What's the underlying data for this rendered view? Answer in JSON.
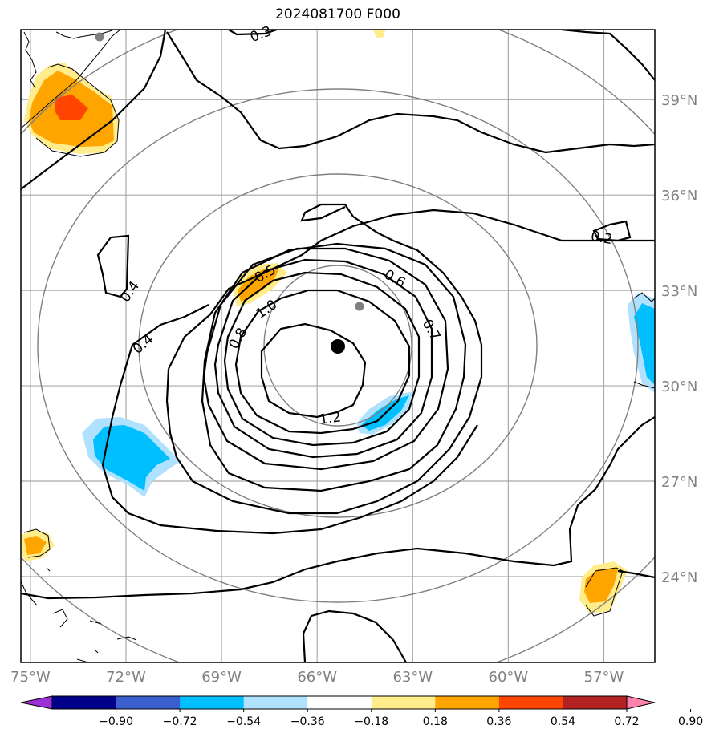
{
  "title": "2024081700 F000",
  "map": {
    "lon_range": [
      -75.3,
      -55.4
    ],
    "lat_range": [
      21.3,
      41.2
    ],
    "lon_ticks": [
      {
        "value": -75,
        "label": "75°W"
      },
      {
        "value": -72,
        "label": "72°W"
      },
      {
        "value": -69,
        "label": "69°W"
      },
      {
        "value": -66,
        "label": "66°W"
      },
      {
        "value": -63,
        "label": "63°W"
      },
      {
        "value": -60,
        "label": "60°W"
      },
      {
        "value": -57,
        "label": "57°W"
      }
    ],
    "lat_ticks": [
      {
        "value": 39,
        "label": "39°N"
      },
      {
        "value": 36,
        "label": "36°N"
      },
      {
        "value": 33,
        "label": "33°N"
      },
      {
        "value": 30,
        "label": "30°N"
      },
      {
        "value": 27,
        "label": "27°N"
      },
      {
        "value": 24,
        "label": "24°N"
      }
    ],
    "grid_color": "#aaaaaa",
    "storm_center": {
      "lon": -65.3,
      "lat": 31.0
    }
  },
  "contour_labels": [
    "0.3",
    "0.5",
    "0.6",
    "1.0",
    "0.8",
    "0.7",
    "1.2",
    "0.4",
    "0.4",
    "0.2"
  ],
  "colorbar": {
    "colors": [
      "#9b30d9",
      "#00008b",
      "#3a5fcd",
      "#00bfff",
      "#b0e2ff",
      "#ffffff",
      "#ffec8b",
      "#ffa500",
      "#ff4500",
      "#b22222",
      "#ff82ab"
    ],
    "labels": [
      "−0.90",
      "−0.72",
      "−0.54",
      "−0.36",
      "−0.18",
      "0.18",
      "0.36",
      "0.54",
      "0.72",
      "0.90"
    ]
  }
}
